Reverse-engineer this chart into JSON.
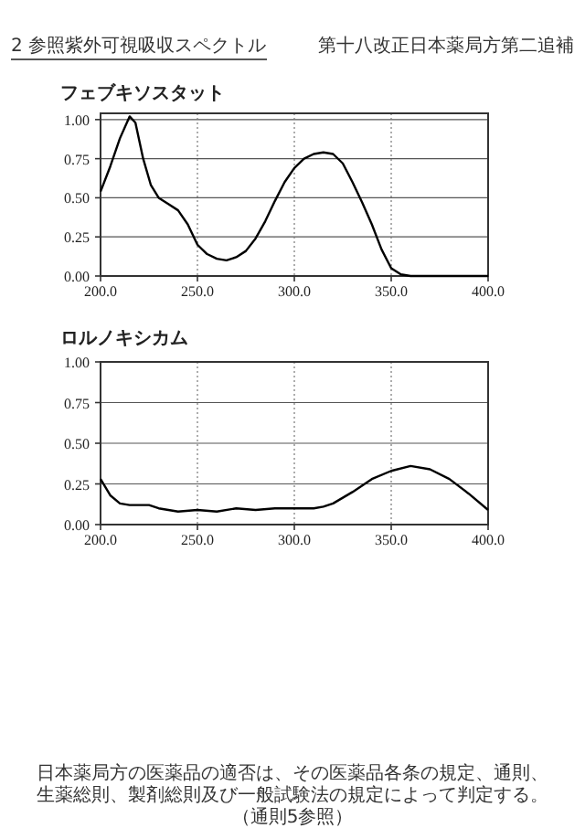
{
  "chart_data": [
    {
      "type": "line",
      "title": "フェブキソスタット",
      "annotations": [
        "2 参照紫外可視吸収スペクトル",
        "第十八改正日本薬局方第二追補"
      ],
      "x": [
        200,
        205,
        210,
        215,
        218,
        222,
        226,
        230,
        235,
        240,
        245,
        250,
        255,
        260,
        265,
        270,
        275,
        280,
        285,
        290,
        295,
        300,
        305,
        310,
        315,
        320,
        325,
        330,
        335,
        340,
        345,
        350,
        355,
        360,
        370,
        380,
        390,
        400
      ],
      "values": [
        0.54,
        0.7,
        0.88,
        1.02,
        0.98,
        0.75,
        0.58,
        0.5,
        0.46,
        0.42,
        0.33,
        0.2,
        0.14,
        0.11,
        0.1,
        0.12,
        0.16,
        0.24,
        0.35,
        0.48,
        0.6,
        0.69,
        0.75,
        0.78,
        0.79,
        0.78,
        0.72,
        0.6,
        0.47,
        0.33,
        0.17,
        0.05,
        0.01,
        0,
        0,
        0,
        0,
        0
      ],
      "color": "#000000",
      "xlim": [
        200,
        400
      ],
      "ylim": [
        0,
        1.04
      ],
      "xticks": [
        {
          "value": 200,
          "label": "200.0"
        },
        {
          "value": 250,
          "label": "250.0"
        },
        {
          "value": 300,
          "label": "300.0"
        },
        {
          "value": 350,
          "label": "350.0"
        },
        {
          "value": 400,
          "label": "400.0"
        }
      ],
      "yticks": [
        {
          "value": 0,
          "label": "0.00"
        },
        {
          "value": 0.25,
          "label": "0.25"
        },
        {
          "value": 0.5,
          "label": "0.50"
        },
        {
          "value": 0.75,
          "label": "0.75"
        },
        {
          "value": 1,
          "label": "1.00"
        }
      ],
      "grid": true
    },
    {
      "type": "line",
      "title": "ロルノキシカム",
      "annotations": [
        "日本薬局方の医薬品の適否は、その医薬品各条の規定、通則、生薬総則、製剤総則及び一般試験法の規定によって判定する。（通則5参照）"
      ],
      "x": [
        200,
        205,
        210,
        215,
        220,
        225,
        230,
        235,
        240,
        250,
        260,
        270,
        280,
        290,
        300,
        310,
        315,
        320,
        330,
        340,
        350,
        360,
        370,
        380,
        390,
        400
      ],
      "values": [
        0.28,
        0.18,
        0.13,
        0.12,
        0.12,
        0.12,
        0.1,
        0.09,
        0.08,
        0.09,
        0.08,
        0.1,
        0.09,
        0.1,
        0.1,
        0.1,
        0.11,
        0.13,
        0.2,
        0.28,
        0.33,
        0.36,
        0.34,
        0.28,
        0.19,
        0.09
      ],
      "color": "#000000",
      "xlim": [
        200,
        400
      ],
      "ylim": [
        0,
        1
      ],
      "xticks": [
        {
          "value": 200,
          "label": "200.0"
        },
        {
          "value": 250,
          "label": "250.0"
        },
        {
          "value": 300,
          "label": "300.0"
        },
        {
          "value": 350,
          "label": "350.0"
        },
        {
          "value": 400,
          "label": "400.0"
        }
      ],
      "yticks": [
        {
          "value": 0,
          "label": "0.00"
        },
        {
          "value": 0.25,
          "label": "0.25"
        },
        {
          "value": 0.5,
          "label": "0.50"
        },
        {
          "value": 0.75,
          "label": "0.75"
        },
        {
          "value": 1,
          "label": "1.00"
        }
      ],
      "grid": true
    }
  ]
}
